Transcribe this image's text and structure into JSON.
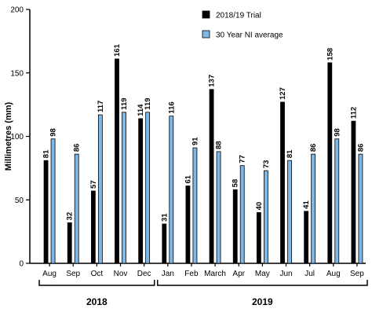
{
  "chart_data": {
    "type": "bar",
    "ylabel": "Millimetres (mm)",
    "ylim": [
      0,
      200
    ],
    "yticks": [
      0,
      50,
      100,
      150,
      200
    ],
    "categories": [
      "Aug",
      "Sep",
      "Oct",
      "Nov",
      "Dec",
      "Jan",
      "Feb",
      "March",
      "Apr",
      "May",
      "Jun",
      "Jul",
      "Aug",
      "Sep"
    ],
    "series": [
      {
        "name": "2018/19 Trial",
        "color": "#000000",
        "values": [
          81,
          32,
          57,
          161,
          114,
          31,
          61,
          137,
          58,
          40,
          127,
          41,
          158,
          112
        ]
      },
      {
        "name": "30 Year NI average",
        "color": "#7fb7e6",
        "values": [
          98,
          86,
          117,
          119,
          119,
          116,
          91,
          88,
          77,
          73,
          81,
          86,
          98,
          86
        ]
      }
    ],
    "legend_position": "top-right",
    "grid": false,
    "groups": [
      {
        "label": "2018",
        "first": 0,
        "last": 4
      },
      {
        "label": "2019",
        "first": 5,
        "last": 13
      }
    ]
  }
}
